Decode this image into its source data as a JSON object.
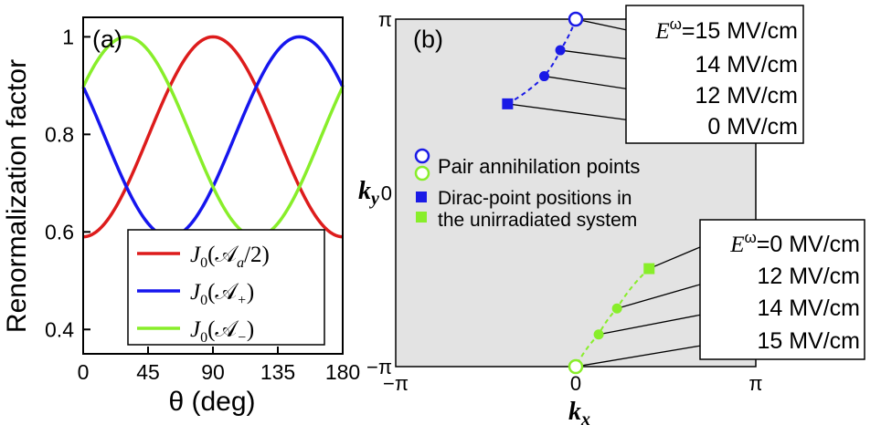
{
  "figure": {
    "panel_a_label": "(a)",
    "panel_b_label": "(b)"
  },
  "chart_data": [
    {
      "type": "line",
      "panel": "(a)",
      "title": "",
      "xlabel": "θ (deg)",
      "ylabel": "Renormalization factor",
      "xlim": [
        0,
        180
      ],
      "ylim": [
        0.35,
        1.04
      ],
      "xticks": [
        0,
        45,
        90,
        135,
        180
      ],
      "xtick_labels": [
        "0",
        "45",
        "90",
        "135",
        "180"
      ],
      "yticks": [
        0.4,
        0.6,
        0.8,
        1.0
      ],
      "ytick_labels": [
        "0.4",
        "0.6",
        "0.8",
        "1"
      ],
      "grid": false,
      "legend_position": "bottom-center",
      "series": [
        {
          "name": "J0(Aa/2)",
          "legend_main": "J",
          "legend_sub": "0",
          "legend_arg": "(𝒜",
          "legend_argsub": "a",
          "legend_tail": "/2)",
          "color": "#dd1c1c",
          "x": [
            0,
            90,
            180
          ],
          "y": [
            0.59,
            1.0,
            0.59
          ]
        },
        {
          "name": "J0(A+)",
          "legend_main": "J",
          "legend_sub": "0",
          "legend_arg": "(𝒜",
          "legend_argsub": "+",
          "legend_tail": ")",
          "color": "#1616ee",
          "x": [
            0,
            60,
            150,
            180
          ],
          "y": [
            0.89,
            0.6,
            1.0,
            0.89
          ]
        },
        {
          "name": "J0(A−)",
          "legend_main": "J",
          "legend_sub": "0",
          "legend_arg": "(𝒜",
          "legend_argsub": "−",
          "legend_tail": ")",
          "color": "#88ee2a",
          "x": [
            0,
            30,
            120,
            180
          ],
          "y": [
            0.89,
            1.0,
            0.6,
            0.89
          ]
        }
      ]
    },
    {
      "type": "scatter",
      "panel": "(b)",
      "xlabel": "kx",
      "xlabel_main": "k",
      "xlabel_sub": "x",
      "ylabel": "ky",
      "ylabel_main": "k",
      "ylabel_sub": "y",
      "xlim": [
        -3.14159,
        3.14159
      ],
      "ylim": [
        -3.14159,
        3.14159
      ],
      "xtick_labels": [
        "−π",
        "0",
        "π"
      ],
      "ytick_labels": [
        "−π",
        "0",
        "π"
      ],
      "background": "#e3e3e3",
      "series": [
        {
          "name": "blue trajectory",
          "color": "#1a1ae6",
          "points": [
            {
              "x": -1.19,
              "y": 1.61,
              "marker": "square",
              "fill": true
            },
            {
              "x": -0.55,
              "y": 2.11,
              "marker": "circle",
              "fill": true
            },
            {
              "x": -0.27,
              "y": 2.58,
              "marker": "circle",
              "fill": true
            },
            {
              "x": 0.0,
              "y": 3.14159,
              "marker": "circle",
              "fill": false
            }
          ]
        },
        {
          "name": "green trajectory",
          "color": "#88ee2a",
          "points": [
            {
              "x": 1.28,
              "y": -1.37,
              "marker": "square",
              "fill": true
            },
            {
              "x": 0.72,
              "y": -2.09,
              "marker": "circle",
              "fill": true
            },
            {
              "x": 0.4,
              "y": -2.56,
              "marker": "circle",
              "fill": true
            },
            {
              "x": 0.0,
              "y": -3.14159,
              "marker": "circle",
              "fill": false
            }
          ]
        }
      ],
      "top_box": {
        "first_prefix": "E",
        "first_sup": "ω",
        "first_rest": "=15 MV/cm",
        "rest": [
          "14 MV/cm",
          "12 MV/cm",
          "0 MV/cm"
        ]
      },
      "bottom_box": {
        "first_prefix": "E",
        "first_sup": "ω",
        "first_rest": "=0 MV/cm",
        "rest": [
          "12 MV/cm",
          "14 MV/cm",
          "15 MV/cm"
        ]
      },
      "legend": {
        "pair_annihilation": "Pair annihilation points",
        "dirac_line1": "Dirac-point positions in",
        "dirac_line2": "the unirradiated system"
      }
    }
  ]
}
